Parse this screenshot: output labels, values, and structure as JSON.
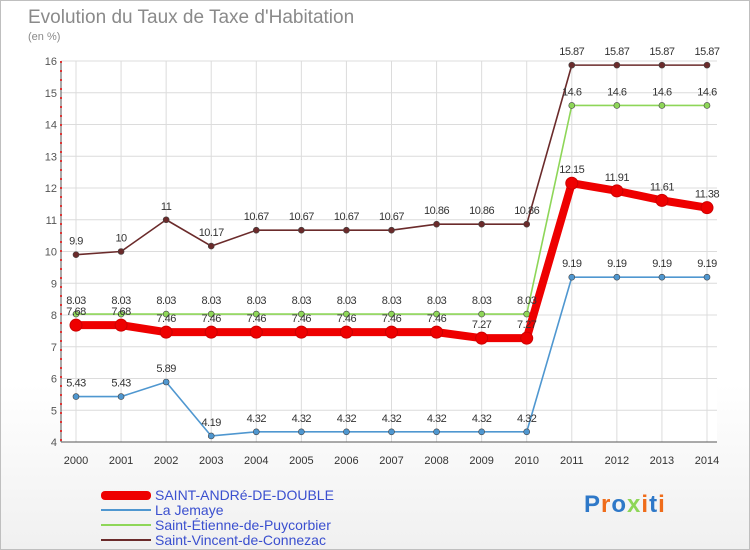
{
  "title": "Evolution du Taux de Taxe d'Habitation",
  "unit_label": "(en %)",
  "logo_text": "Proxiti",
  "chart_data": {
    "type": "line",
    "title": "Evolution du Taux de Taxe d'Habitation",
    "ylabel": "(en %)",
    "x": [
      "2000",
      "2001",
      "2002",
      "2003",
      "2004",
      "2005",
      "2006",
      "2007",
      "2008",
      "2009",
      "2010",
      "2011",
      "2012",
      "2013",
      "2014"
    ],
    "ylim": [
      4,
      16
    ],
    "yticks": [
      "4",
      "5",
      "6",
      "7",
      "8",
      "9",
      "10",
      "11",
      "12",
      "13",
      "14",
      "15",
      "16"
    ],
    "grid": true,
    "legend_position": "bottom-left",
    "series": [
      {
        "name": "SAINT-ANDRé-DE-DOUBLE",
        "color": "#ee0000",
        "values": [
          7.68,
          7.68,
          7.46,
          7.46,
          7.46,
          7.46,
          7.46,
          7.46,
          7.46,
          7.27,
          7.27,
          12.15,
          11.91,
          11.61,
          11.38
        ],
        "labels": [
          "7.68",
          "7.68",
          "7.46",
          "7.46",
          "7.46",
          "7.46",
          "7.46",
          "7.46",
          "7.46",
          "7.27",
          "7.27",
          "12.15",
          "11.91",
          "11.61",
          "11.38"
        ]
      },
      {
        "name": "La Jemaye",
        "color": "#4f97d0",
        "values": [
          5.43,
          5.43,
          5.89,
          4.19,
          4.32,
          4.32,
          4.32,
          4.32,
          4.32,
          4.32,
          4.32,
          9.19,
          9.19,
          9.19,
          9.19
        ],
        "labels": [
          "5.43",
          "5.43",
          "5.89",
          "4.19",
          "4.32",
          "4.32",
          "4.32",
          "4.32",
          "4.32",
          "4.32",
          "4.32",
          "9.19",
          "9.19",
          "9.19",
          "9.19"
        ]
      },
      {
        "name": "Saint-Étienne-de-Puycorbier",
        "color": "#8ed658",
        "values": [
          8.03,
          8.03,
          8.03,
          8.03,
          8.03,
          8.03,
          8.03,
          8.03,
          8.03,
          8.03,
          8.03,
          14.6,
          14.6,
          14.6,
          14.6
        ],
        "labels": [
          "8.03",
          "8.03",
          "8.03",
          "8.03",
          "8.03",
          "8.03",
          "8.03",
          "8.03",
          "8.03",
          "8.03",
          "8.03",
          "14.6",
          "14.6",
          "14.6",
          "14.6"
        ]
      },
      {
        "name": "Saint-Vincent-de-Connezac",
        "color": "#6b2b2b",
        "values": [
          9.9,
          10,
          11,
          10.17,
          10.67,
          10.67,
          10.67,
          10.67,
          10.86,
          10.86,
          10.86,
          15.87,
          15.87,
          15.87,
          15.87
        ],
        "labels": [
          "9.9",
          "10",
          "11",
          "10.17",
          "10.67",
          "10.67",
          "10.67",
          "10.67",
          "10.86",
          "10.86",
          "10.86",
          "15.87",
          "15.87",
          "15.87",
          "15.87"
        ]
      }
    ]
  }
}
